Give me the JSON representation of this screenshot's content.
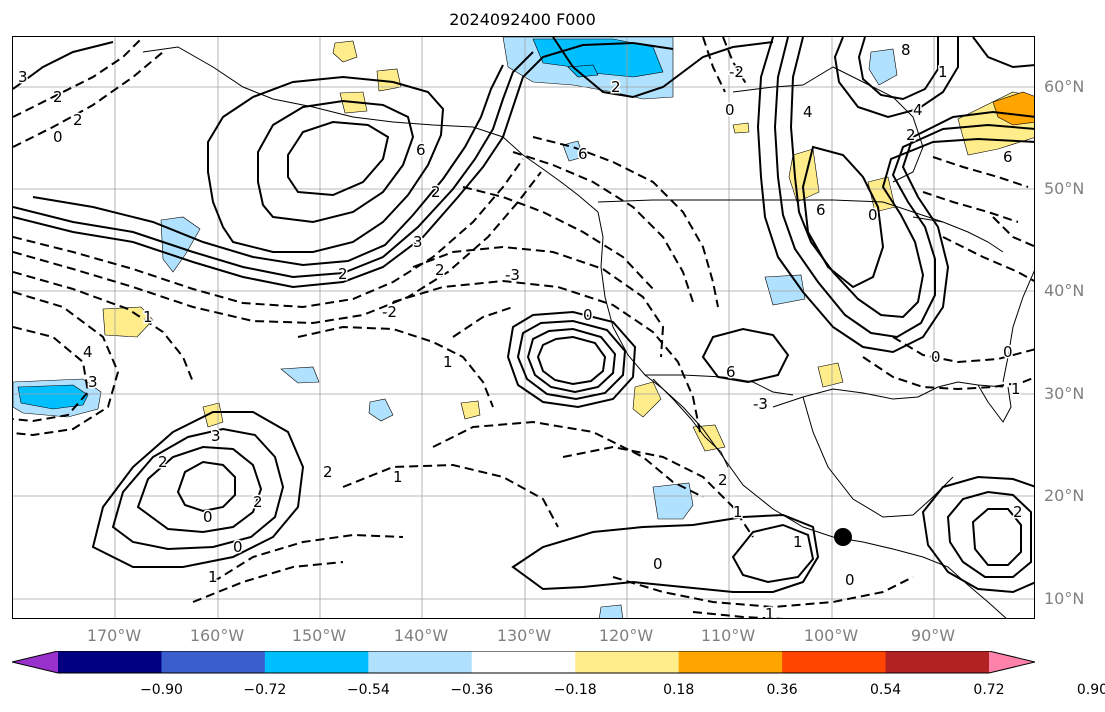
{
  "title": "2024092400 F000",
  "lat_labels": [
    "60°N",
    "50°N",
    "40°N",
    "30°N",
    "20°N",
    "10°N"
  ],
  "lon_labels": [
    "170°W",
    "160°W",
    "150°W",
    "140°W",
    "130°W",
    "120°W",
    "110°W",
    "100°W",
    "90°W"
  ],
  "colorbar": {
    "colors": [
      "#9932cc",
      "#000080",
      "#3a5fcd",
      "#00bfff",
      "#b0e2ff",
      "#ffffff",
      "#ffec8b",
      "#ffa500",
      "#ff4500",
      "#b22222",
      "#ff82ab"
    ],
    "tick_labels": [
      "−0.90",
      "−0.72",
      "−0.54",
      "−0.36",
      "−0.18",
      "0.18",
      "0.36",
      "0.54",
      "0.72",
      "0.90"
    ]
  },
  "contour_labels": [
    "3",
    "2",
    "0",
    "2",
    "6",
    "2",
    "-2",
    "0",
    "2",
    "6",
    "4",
    "2",
    "8",
    "6",
    "4",
    "0",
    "6",
    "1",
    "6",
    "2",
    "3",
    "2",
    "2",
    "-3",
    "0",
    "-2",
    "4",
    "3",
    "1",
    "1",
    "3",
    "2",
    "0",
    "2",
    "2",
    "1",
    "1",
    "0",
    "1",
    "0",
    "1",
    "0",
    "1",
    "0",
    "2",
    "1",
    "0",
    "-3"
  ],
  "marker": {
    "lon": -97.5,
    "lat": 16.0
  }
}
